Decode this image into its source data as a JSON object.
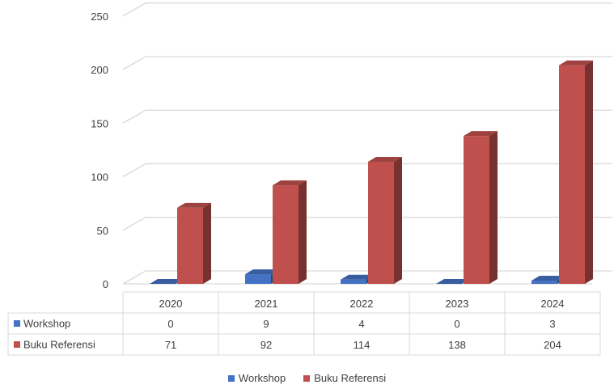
{
  "chart_data": {
    "type": "bar",
    "style": "3d-clustered-column-with-data-table",
    "categories": [
      "2020",
      "2021",
      "2022",
      "2023",
      "2024"
    ],
    "series": [
      {
        "name": "Workshop",
        "values": [
          0,
          9,
          4,
          0,
          3
        ],
        "color": "#4472C4"
      },
      {
        "name": "Buku Referensi",
        "values": [
          71,
          92,
          114,
          138,
          204
        ],
        "color": "#C0504D"
      }
    ],
    "ylim": [
      0,
      250
    ],
    "yticks": [
      0,
      50,
      100,
      150,
      200,
      250
    ],
    "grid": true,
    "legend": "bottom",
    "data_table": true
  }
}
